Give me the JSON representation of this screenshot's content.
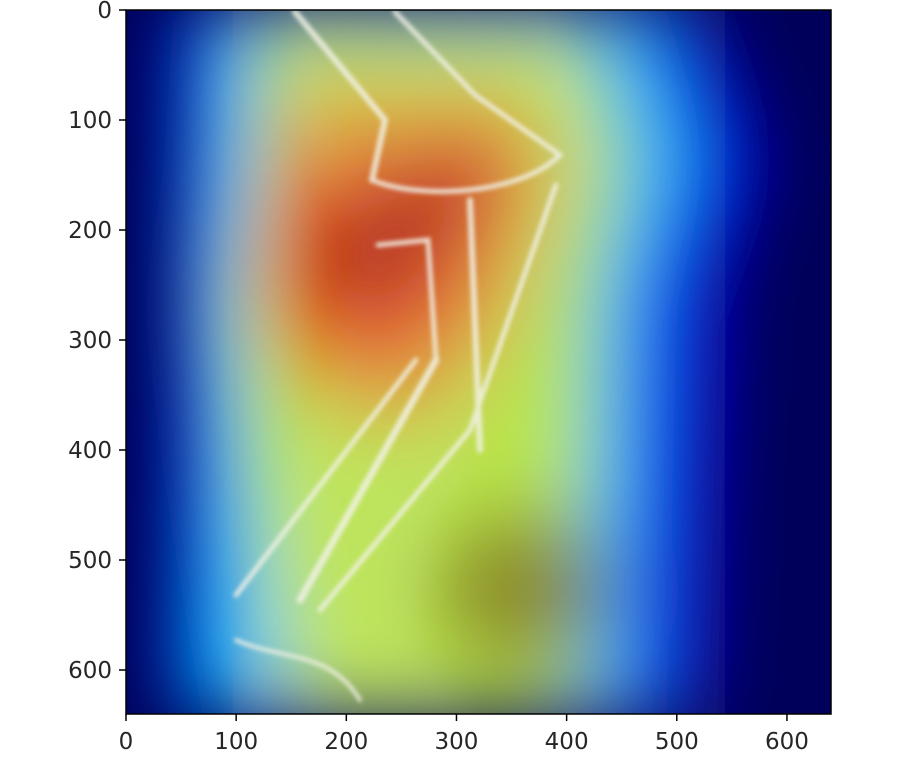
{
  "chart_data": {
    "type": "heatmap",
    "title": "",
    "xlabel": "",
    "ylabel": "",
    "xlim": [
      0,
      640
    ],
    "ylim": [
      640,
      0
    ],
    "x_ticks": [
      0,
      100,
      200,
      300,
      400,
      500,
      600
    ],
    "y_ticks": [
      0,
      100,
      200,
      300,
      400,
      500,
      600
    ],
    "x_tick_labels": [
      "0",
      "100",
      "200",
      "300",
      "400",
      "500",
      "600"
    ],
    "y_tick_labels": [
      "0",
      "100",
      "200",
      "300",
      "400",
      "500",
      "600"
    ],
    "grid": false,
    "colormap": "jet",
    "colormap_colors": [
      "#00007f",
      "#0000ff",
      "#00ffff",
      "#ffff00",
      "#ff0000",
      "#7f0000"
    ],
    "background_color": "#00005a",
    "hotspots": [
      {
        "x": 250,
        "y": 250,
        "intensity": 1.0
      },
      {
        "x": 320,
        "y": 140,
        "intensity": 0.95
      },
      {
        "x": 400,
        "y": 560,
        "intensity": 0.8
      }
    ],
    "underlay": "x-ray image of forearm with fractured radius and ulna"
  }
}
